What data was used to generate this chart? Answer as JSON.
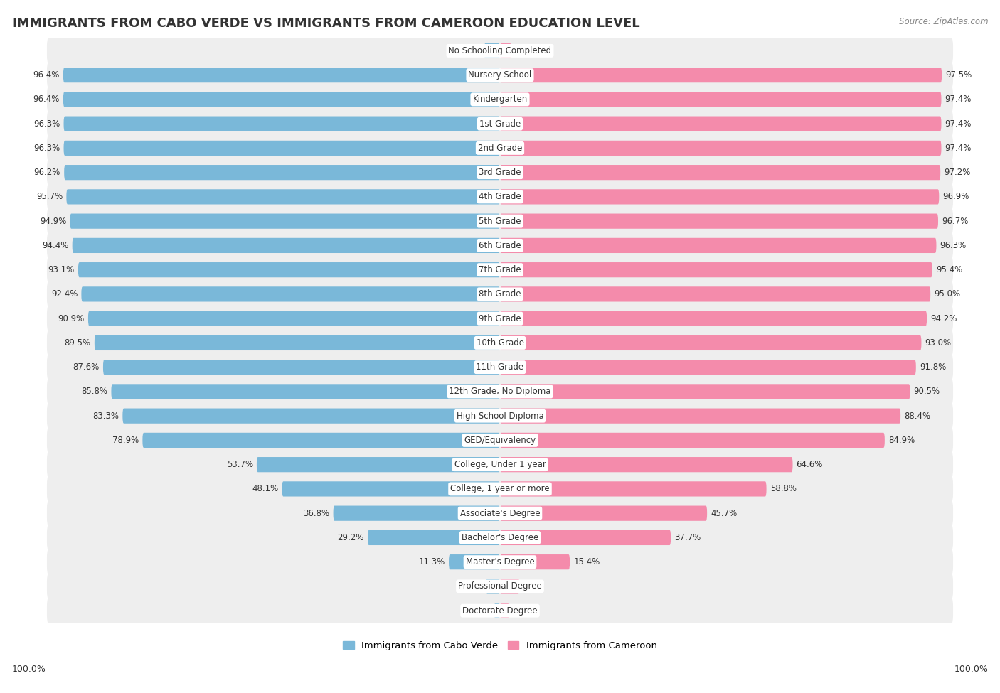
{
  "title": "IMMIGRANTS FROM CABO VERDE VS IMMIGRANTS FROM CAMEROON EDUCATION LEVEL",
  "source": "Source: ZipAtlas.com",
  "legend": [
    "Immigrants from Cabo Verde",
    "Immigrants from Cameroon"
  ],
  "legend_colors": [
    "#7ab8d9",
    "#f48bab"
  ],
  "categories": [
    "No Schooling Completed",
    "Nursery School",
    "Kindergarten",
    "1st Grade",
    "2nd Grade",
    "3rd Grade",
    "4th Grade",
    "5th Grade",
    "6th Grade",
    "7th Grade",
    "8th Grade",
    "9th Grade",
    "10th Grade",
    "11th Grade",
    "12th Grade, No Diploma",
    "High School Diploma",
    "GED/Equivalency",
    "College, Under 1 year",
    "College, 1 year or more",
    "Associate's Degree",
    "Bachelor's Degree",
    "Master's Degree",
    "Professional Degree",
    "Doctorate Degree"
  ],
  "cabo_verde": [
    3.5,
    96.4,
    96.4,
    96.3,
    96.3,
    96.2,
    95.7,
    94.9,
    94.4,
    93.1,
    92.4,
    90.9,
    89.5,
    87.6,
    85.8,
    83.3,
    78.9,
    53.7,
    48.1,
    36.8,
    29.2,
    11.3,
    3.1,
    1.3
  ],
  "cameroon": [
    2.5,
    97.5,
    97.4,
    97.4,
    97.4,
    97.2,
    96.9,
    96.7,
    96.3,
    95.4,
    95.0,
    94.2,
    93.0,
    91.8,
    90.5,
    88.4,
    84.9,
    64.6,
    58.8,
    45.7,
    37.7,
    15.4,
    4.3,
    2.0
  ],
  "cabo_verde_color": "#7ab8d9",
  "cameroon_color": "#f48bab",
  "background_color": "#ffffff",
  "row_bg_color": "#eeeeee",
  "bar_height": 0.62,
  "title_fontsize": 13,
  "label_fontsize": 8.5,
  "value_fontsize": 8.5
}
